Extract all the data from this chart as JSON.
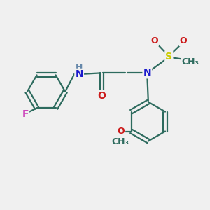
{
  "bg_color": "#f0f0f0",
  "bond_color": "#2d6b5e",
  "bond_width": 1.6,
  "atom_colors": {
    "N": "#1a1acc",
    "O": "#cc1a1a",
    "F": "#cc44bb",
    "S": "#cccc00",
    "H": "#6688aa",
    "C": "#2d6b5e"
  },
  "font_size_atom": 10,
  "font_size_small": 9,
  "font_size_h": 9
}
